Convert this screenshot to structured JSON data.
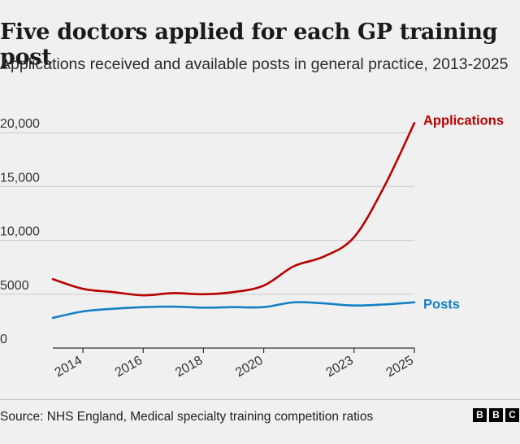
{
  "header": {
    "title": "Five doctors applied for each GP training post",
    "subtitle": "Applications received and available posts in general practice, 2013-2025"
  },
  "footer": {
    "source": "Source: NHS England, Medical specialty training competition ratios",
    "logo_letters": [
      "B",
      "B",
      "C"
    ]
  },
  "chart_data": {
    "type": "line",
    "x": [
      2013,
      2014,
      2015,
      2016,
      2017,
      2018,
      2019,
      2020,
      2021,
      2022,
      2023,
      2024,
      2025
    ],
    "x_ticks": [
      2014,
      2016,
      2018,
      2020,
      2023,
      2025
    ],
    "x_tick_labels": [
      "2014",
      "2016",
      "2018",
      "2020",
      "2023",
      "2025"
    ],
    "ylim": [
      0,
      21000
    ],
    "y_ticks": [
      0,
      5000,
      10000,
      15000,
      20000
    ],
    "y_tick_labels": [
      "0",
      "5000",
      "10,000",
      "15,000",
      "20,000"
    ],
    "grid": true,
    "series": [
      {
        "name": "Applications",
        "color": "#b80000",
        "values": [
          6400,
          5500,
          5200,
          4900,
          5100,
          5000,
          5200,
          5800,
          7600,
          8500,
          10300,
          15000,
          20900
        ]
      },
      {
        "name": "Posts",
        "color": "#1380c4",
        "values": [
          2800,
          3400,
          3650,
          3800,
          3850,
          3750,
          3800,
          3800,
          4250,
          4150,
          3950,
          4050,
          4250
        ]
      }
    ]
  }
}
